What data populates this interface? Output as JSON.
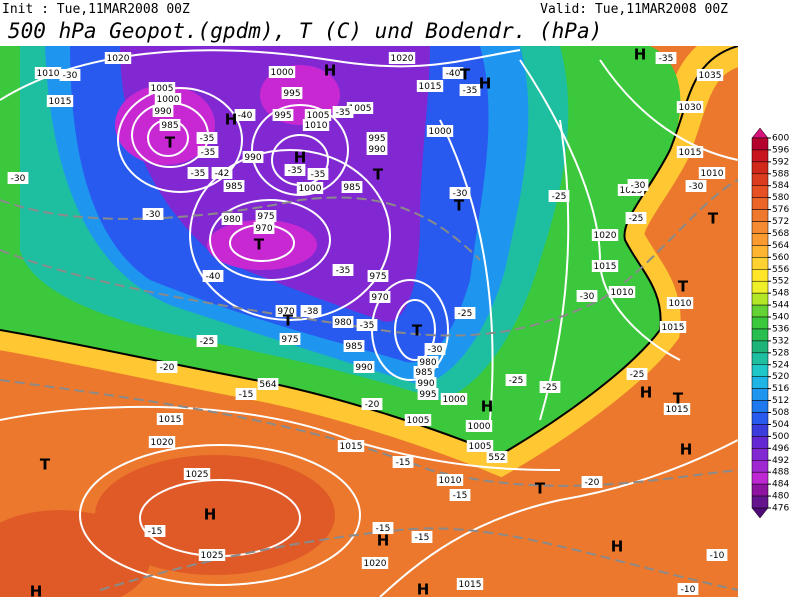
{
  "header": {
    "init": "Init : Tue,11MAR2008 00Z",
    "valid": "Valid: Tue,11MAR2008 00Z",
    "title": "500 hPa Geopot.(gpdm), T (C) und Bodendr. (hPa)"
  },
  "map": {
    "pressure_labels": [
      "1020",
      "1010",
      "1015",
      "1005",
      "1000",
      "990",
      "985",
      "1000",
      "995",
      "995",
      "1005",
      "1010",
      "1005",
      "990",
      "985",
      "995",
      "990",
      "1000",
      "985",
      "1000",
      "975",
      "970",
      "980",
      "975",
      "970",
      "970",
      "980",
      "975",
      "985",
      "990",
      "980",
      "985",
      "990",
      "995",
      "1000",
      "1005",
      "1000",
      "1005",
      "1015",
      "1020",
      "1015",
      "1025",
      "1025",
      "1010",
      "1020",
      "1015",
      "1020",
      "1015",
      "1035",
      "1030",
      "1015",
      "1010",
      "1025",
      "1020",
      "1015",
      "1010",
      "1010",
      "1015",
      "1015"
    ],
    "temperature_labels": [
      "-30",
      "-35",
      "-35",
      "-42",
      "-35",
      "-40",
      "-35",
      "-35",
      "-35",
      "-30",
      "-30",
      "-40",
      "-35",
      "-38",
      "-35",
      "-30",
      "-25",
      "-30",
      "-25",
      "-25",
      "-30",
      "-30",
      "-25",
      "-20",
      "-15",
      "-20",
      "-25",
      "-25",
      "-25",
      "-15",
      "-15",
      "-20",
      "-15",
      "-15",
      "-15",
      "-10",
      "-10",
      "-35",
      "-35",
      "-40",
      "-30"
    ],
    "line_labels": [
      "564",
      "552"
    ],
    "systems": [
      "H",
      "H",
      "T",
      "H",
      "T",
      "T",
      "T",
      "H",
      "T",
      "H",
      "T",
      "T",
      "T",
      "T",
      "H",
      "H",
      "T",
      "T",
      "H",
      "T",
      "H",
      "H",
      "H",
      "H",
      "H"
    ],
    "colorbar": {
      "ticks": [
        600,
        596,
        592,
        588,
        584,
        580,
        576,
        572,
        568,
        564,
        560,
        556,
        552,
        548,
        544,
        540,
        536,
        532,
        528,
        524,
        520,
        516,
        512,
        508,
        504,
        500,
        496,
        492,
        488,
        484,
        480,
        476
      ],
      "colors": [
        "#b4002d",
        "#c8141e",
        "#d22819",
        "#dc3c1e",
        "#e65023",
        "#eb6428",
        "#f0782d",
        "#f58c32",
        "#fa9b32",
        "#ffb432",
        "#ffd232",
        "#ffe628",
        "#f0f028",
        "#b4e628",
        "#64d232",
        "#3cc83c",
        "#28be50",
        "#1eb478",
        "#1ebea0",
        "#1ec8c8",
        "#1eb4e6",
        "#1e96f0",
        "#1e78f0",
        "#285af0",
        "#3c3cdc",
        "#6428d2",
        "#8228d2",
        "#a028d2",
        "#be28d2",
        "#8c14a0",
        "#64148c"
      ],
      "top_color": "#d2147a",
      "bottom_color": "#500a78"
    }
  }
}
